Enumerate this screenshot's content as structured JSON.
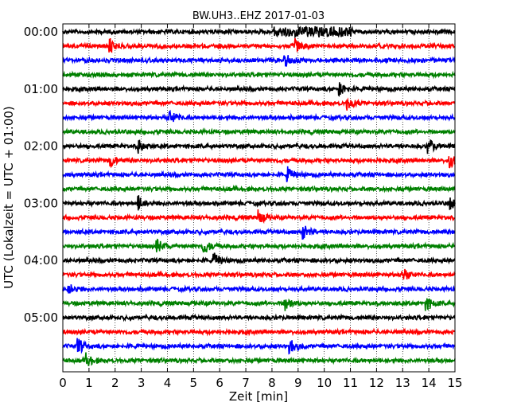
{
  "chart_data": {
    "type": "line",
    "title": "BW.UH3..EHZ 2017-01-03",
    "xlabel": "Zeit  [min]",
    "ylabel": "UTC (Lokalzeit = UTC + 01:00)",
    "xlim": [
      0,
      15
    ],
    "x_ticks": [
      "0",
      "1",
      "2",
      "3",
      "4",
      "5",
      "6",
      "7",
      "8",
      "9",
      "10",
      "11",
      "12",
      "13",
      "14",
      "15"
    ],
    "y_tick_labels": [
      "00:00",
      "01:00",
      "02:00",
      "03:00",
      "04:00",
      "05:00"
    ],
    "y_tick_rows": [
      0,
      4,
      8,
      12,
      16,
      20
    ],
    "trace_interval_min": 15,
    "trace_count": 24,
    "trace_colors": [
      "#000000",
      "#ff0000",
      "#0000ff",
      "#008000"
    ],
    "grid": "vertical dotted lines at each minute",
    "events": [
      {
        "trace": 0,
        "minute": 8.5,
        "note": "sustained burst 8-11 min"
      },
      {
        "trace": 1,
        "minute": 1.8
      },
      {
        "trace": 1,
        "minute": 8.9
      },
      {
        "trace": 2,
        "minute": 8.5
      },
      {
        "trace": 4,
        "minute": 10.6
      },
      {
        "trace": 5,
        "minute": 10.9
      },
      {
        "trace": 6,
        "minute": 4.1
      },
      {
        "trace": 8,
        "minute": 2.9
      },
      {
        "trace": 8,
        "minute": 14.0
      },
      {
        "trace": 9,
        "minute": 1.8
      },
      {
        "trace": 9,
        "minute": 14.8
      },
      {
        "trace": 10,
        "minute": 8.6
      },
      {
        "trace": 12,
        "minute": 2.9
      },
      {
        "trace": 12,
        "minute": 14.8
      },
      {
        "trace": 13,
        "minute": 7.5
      },
      {
        "trace": 14,
        "minute": 9.2
      },
      {
        "trace": 15,
        "minute": 3.6
      },
      {
        "trace": 15,
        "minute": 5.4
      },
      {
        "trace": 16,
        "minute": 5.8
      },
      {
        "trace": 17,
        "minute": 13.0
      },
      {
        "trace": 18,
        "minute": 0.2
      },
      {
        "trace": 19,
        "minute": 8.5
      },
      {
        "trace": 19,
        "minute": 13.9
      },
      {
        "trace": 22,
        "minute": 0.6
      },
      {
        "trace": 22,
        "minute": 8.7
      },
      {
        "trace": 23,
        "minute": 0.9
      }
    ]
  }
}
